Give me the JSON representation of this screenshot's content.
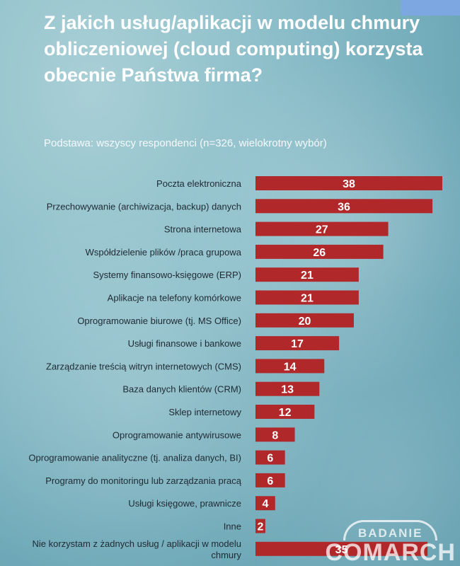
{
  "title": "Z jakich usług/aplikacji w modelu chmury obliczeniowej (cloud computing) korzysta obecnie Państwa firma?",
  "subtitle": "Podstawa: wszyscy respondenci (n=326, wielokrotny wybór)",
  "logo": {
    "line1": "BADANIE",
    "line2": "COMARCH"
  },
  "colors": {
    "bar": "#b0282a",
    "title": "#ffffff",
    "label": "#1f2a33"
  },
  "chart_data": {
    "type": "bar",
    "orientation": "horizontal",
    "title": "Z jakich usług/aplikacji w modelu chmury obliczeniowej (cloud computing) korzysta obecnie Państwa firma?",
    "xlabel": "",
    "ylabel": "",
    "xlim": [
      0,
      38
    ],
    "grid": false,
    "categories": [
      "Poczta elektroniczna",
      "Przechowywanie (archiwizacja, backup) danych",
      "Strona internetowa",
      "Współdzielenie plików /praca grupowa",
      "Systemy finansowo-księgowe (ERP)",
      "Aplikacje na telefony komórkowe",
      "Oprogramowanie biurowe (tj. MS Office)",
      "Usługi finansowe i bankowe",
      "Zarządzanie treścią witryn internetowych (CMS)",
      "Baza danych klientów (CRM)",
      "Sklep internetowy",
      "Oprogramowanie antywirusowe",
      "Oprogramowanie analityczne  (tj. analiza danych, BI)",
      "Programy do monitoringu lub zarządzania pracą",
      "Usługi księgowe, prawnicze",
      "Inne",
      "Nie korzystam z żadnych usług / aplikacji w modelu chmury"
    ],
    "values": [
      38,
      36,
      27,
      26,
      21,
      21,
      20,
      17,
      14,
      13,
      12,
      8,
      6,
      6,
      4,
      2,
      35
    ]
  }
}
